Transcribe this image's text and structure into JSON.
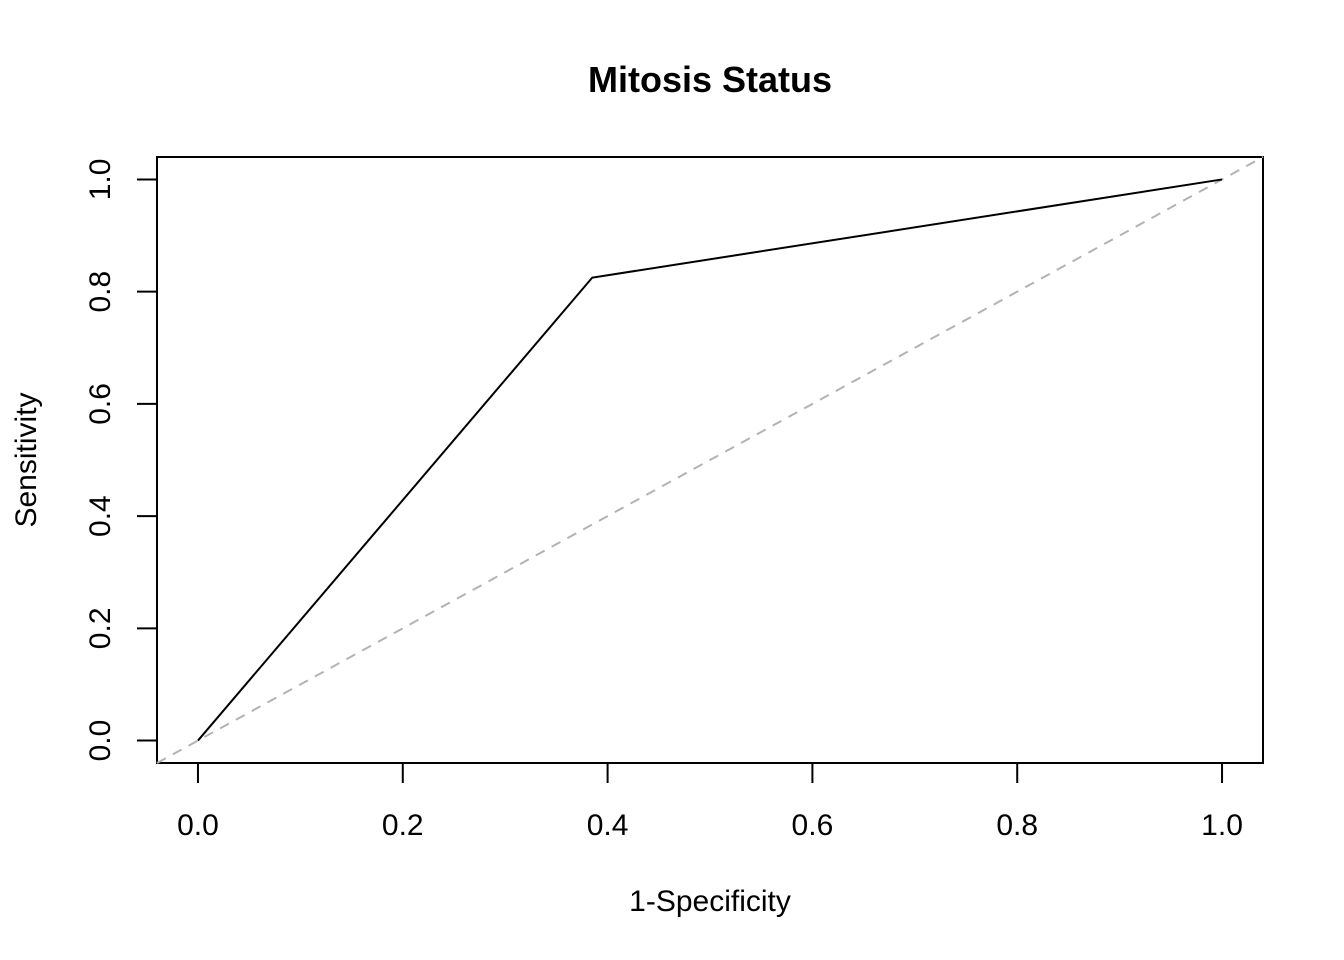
{
  "chart_data": {
    "type": "line",
    "title": "Mitosis Status",
    "xlabel": "1-Specificity",
    "ylabel": "Sensitivity",
    "xlim": [
      -0.04,
      1.04
    ],
    "ylim": [
      -0.04,
      1.04
    ],
    "x_ticks": [
      0.0,
      0.2,
      0.4,
      0.6,
      0.8,
      1.0
    ],
    "x_tick_labels": [
      "0.0",
      "0.2",
      "0.4",
      "0.6",
      "0.8",
      "1.0"
    ],
    "y_ticks": [
      0.0,
      0.2,
      0.4,
      0.6,
      0.8,
      1.0
    ],
    "y_tick_labels": [
      "0.0",
      "0.2",
      "0.4",
      "0.6",
      "0.8",
      "1.0"
    ],
    "grid": false,
    "legend": "none",
    "series": [
      {
        "x": [
          0.0,
          0.385,
          1.0
        ],
        "y": [
          0.0,
          0.825,
          1.0
        ],
        "color": "#000000",
        "style": "solid"
      }
    ],
    "reference_line": {
      "x": [
        -0.04,
        1.04
      ],
      "y": [
        -0.04,
        1.04
      ],
      "color": "#b3b3b3",
      "style": "dashed"
    }
  }
}
